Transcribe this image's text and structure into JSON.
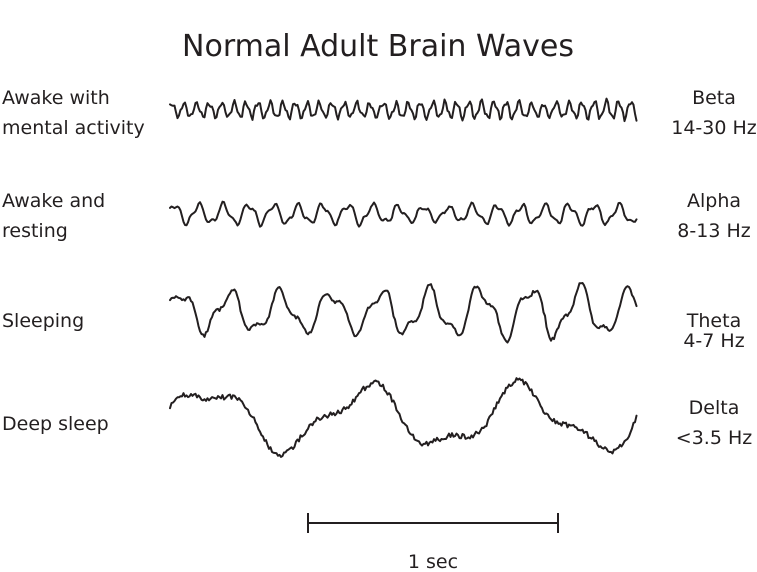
{
  "title": "Normal Adult Brain Waves",
  "rows": [
    {
      "state_lines": [
        "Awake with",
        "mental activity"
      ],
      "band": "Beta",
      "range": "14-30 Hz",
      "freq_hz": 20
    },
    {
      "state_lines": [
        "Awake and",
        "resting"
      ],
      "band": "Alpha",
      "range": "8-13 Hz",
      "freq_hz": 10
    },
    {
      "state_lines": [
        "Sleeping"
      ],
      "band": "Theta",
      "range": "4-7 Hz",
      "freq_hz": 5
    },
    {
      "state_lines": [
        "Deep sleep"
      ],
      "band": "Delta",
      "range": "<3.5 Hz",
      "freq_hz": 1.6
    }
  ],
  "scale_bar": {
    "label": "1 sec",
    "seconds": 1
  },
  "colors": {
    "ink": "#231f20",
    "background": "#ffffff"
  }
}
